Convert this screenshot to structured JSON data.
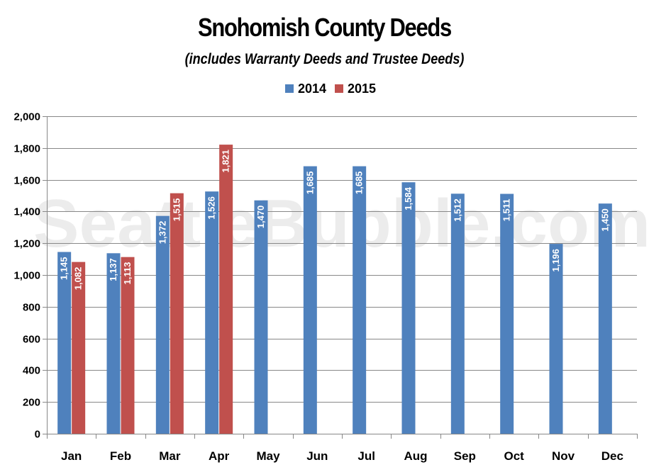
{
  "chart_data": {
    "type": "bar",
    "title": "Snohomish County Deeds",
    "subtitle": "(includes Warranty Deeds and Trustee Deeds)",
    "watermark": "SeattleBubble.com",
    "categories": [
      "Jan",
      "Feb",
      "Mar",
      "Apr",
      "May",
      "Jun",
      "Jul",
      "Aug",
      "Sep",
      "Oct",
      "Nov",
      "Dec"
    ],
    "series": [
      {
        "name": "2014",
        "color": "#4f81bd",
        "values": [
          1145,
          1137,
          1372,
          1526,
          1470,
          1685,
          1685,
          1584,
          1512,
          1511,
          1196,
          1450
        ],
        "labels": [
          "1,145",
          "1,137",
          "1,372",
          "1,526",
          "1,470",
          "1,685",
          "1,685",
          "1,584",
          "1,512",
          "1,511",
          "1,196",
          "1,450"
        ]
      },
      {
        "name": "2015",
        "color": "#c0504d",
        "values": [
          1082,
          1113,
          1515,
          1821,
          null,
          null,
          null,
          null,
          null,
          null,
          null,
          null
        ],
        "labels": [
          "1,082",
          "1,113",
          "1,515",
          "1,821",
          null,
          null,
          null,
          null,
          null,
          null,
          null,
          null
        ]
      }
    ],
    "ylim": [
      0,
      2000
    ],
    "yticks": [
      0,
      200,
      400,
      600,
      800,
      1000,
      1200,
      1400,
      1600,
      1800,
      2000
    ],
    "ytick_labels": [
      "0",
      "200",
      "400",
      "600",
      "800",
      "1,000",
      "1,200",
      "1,400",
      "1,600",
      "1,800",
      "2,000"
    ],
    "xlabel": "",
    "ylabel": "",
    "grid": true,
    "legend": "top-center"
  }
}
